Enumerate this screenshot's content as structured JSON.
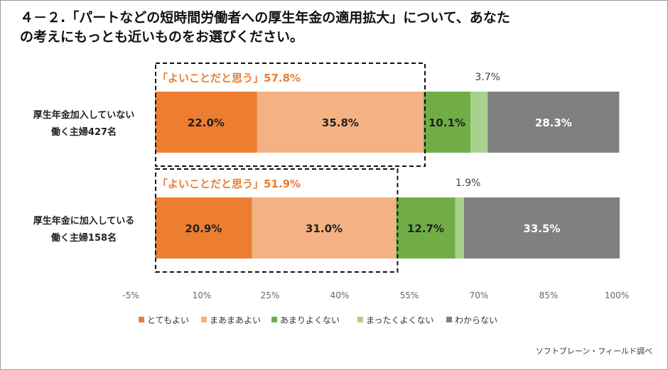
{
  "title_lines": [
    "４－２.「パートなどの短時間労働者への厚生年金の適用拡大」について、あなた",
    "の考えにもっとも近いものをお選びください。"
  ],
  "source": "ソフトブレーン・フィールド調べ",
  "chart_data": {
    "type": "bar",
    "orientation": "horizontal",
    "stacked": true,
    "categories": [
      [
        "厚生年金加入していない",
        "働く主婦427名"
      ],
      [
        "厚生年金に加入している",
        "働く主婦158名"
      ]
    ],
    "series": [
      {
        "name": "とてもよい",
        "color": "#ed7d31",
        "values": [
          22.0,
          20.9
        ],
        "labels": [
          "22.0%",
          "20.9%"
        ],
        "label_color": "#222222"
      },
      {
        "name": "まあまあよい",
        "color": "#f4b183",
        "values": [
          35.8,
          31.0
        ],
        "labels": [
          "35.8%",
          "31.0%"
        ],
        "label_color": "#222222"
      },
      {
        "name": "あまりよくない",
        "color": "#70ad47",
        "values": [
          10.1,
          12.7
        ],
        "labels": [
          "10.1%",
          "12.7%"
        ],
        "label_color": "#222222"
      },
      {
        "name": "まったくよくない",
        "color": "#a9d18e",
        "values": [
          3.7,
          1.9
        ],
        "labels": [
          "3.7%",
          "1.9%"
        ],
        "label_color": "#444444"
      },
      {
        "name": "わからない",
        "color": "#808080",
        "values": [
          28.3,
          33.5
        ],
        "labels": [
          "28.3%",
          "33.5%"
        ],
        "label_color": "#ffffff"
      }
    ],
    "callouts": [
      {
        "prefix": "「よいことだと思う」",
        "value": "57.8%",
        "series_count": 2
      },
      {
        "prefix": "「よいことだと思う」",
        "value": "51.9%",
        "series_count": 2
      }
    ],
    "x_ticks": [
      "-5%",
      "10%",
      "25%",
      "40%",
      "55%",
      "70%",
      "85%",
      "100%"
    ],
    "xlim": [
      0,
      100
    ],
    "grid": false,
    "legend_position": "bottom"
  }
}
